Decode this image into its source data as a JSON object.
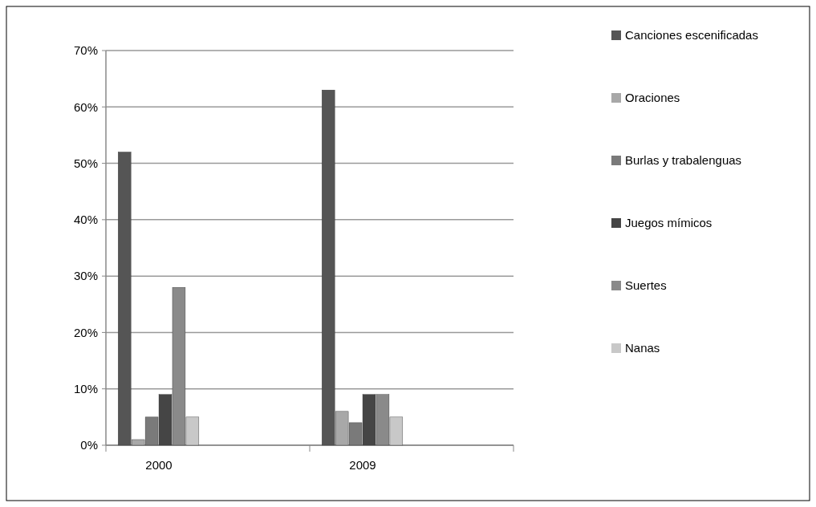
{
  "chart_data": {
    "type": "bar",
    "categories": [
      "2000",
      "2009"
    ],
    "series": [
      {
        "name": "Canciones escenificadas",
        "color": "#555555",
        "values": [
          52,
          63
        ]
      },
      {
        "name": "Oraciones",
        "color": "#a8a8a8",
        "values": [
          1,
          6
        ]
      },
      {
        "name": "Burlas y trabalenguas",
        "color": "#7a7a7a",
        "values": [
          5,
          4
        ]
      },
      {
        "name": "Juegos mímicos",
        "color": "#454545",
        "values": [
          9,
          9
        ]
      },
      {
        "name": "Suertes",
        "color": "#8a8a8a",
        "values": [
          28,
          9
        ]
      },
      {
        "name": "Nanas",
        "color": "#c8c8c8",
        "values": [
          5,
          5
        ]
      }
    ],
    "ylim": [
      0,
      70
    ],
    "yticks": [
      {
        "value": 0,
        "label": "0%"
      },
      {
        "value": 10,
        "label": "10%"
      },
      {
        "value": 20,
        "label": "20%"
      },
      {
        "value": 30,
        "label": "30%"
      },
      {
        "value": 40,
        "label": "40%"
      },
      {
        "value": 50,
        "label": "50%"
      },
      {
        "value": 60,
        "label": "60%"
      },
      {
        "value": 70,
        "label": "70%"
      }
    ],
    "grid": "y",
    "legend": "right"
  }
}
